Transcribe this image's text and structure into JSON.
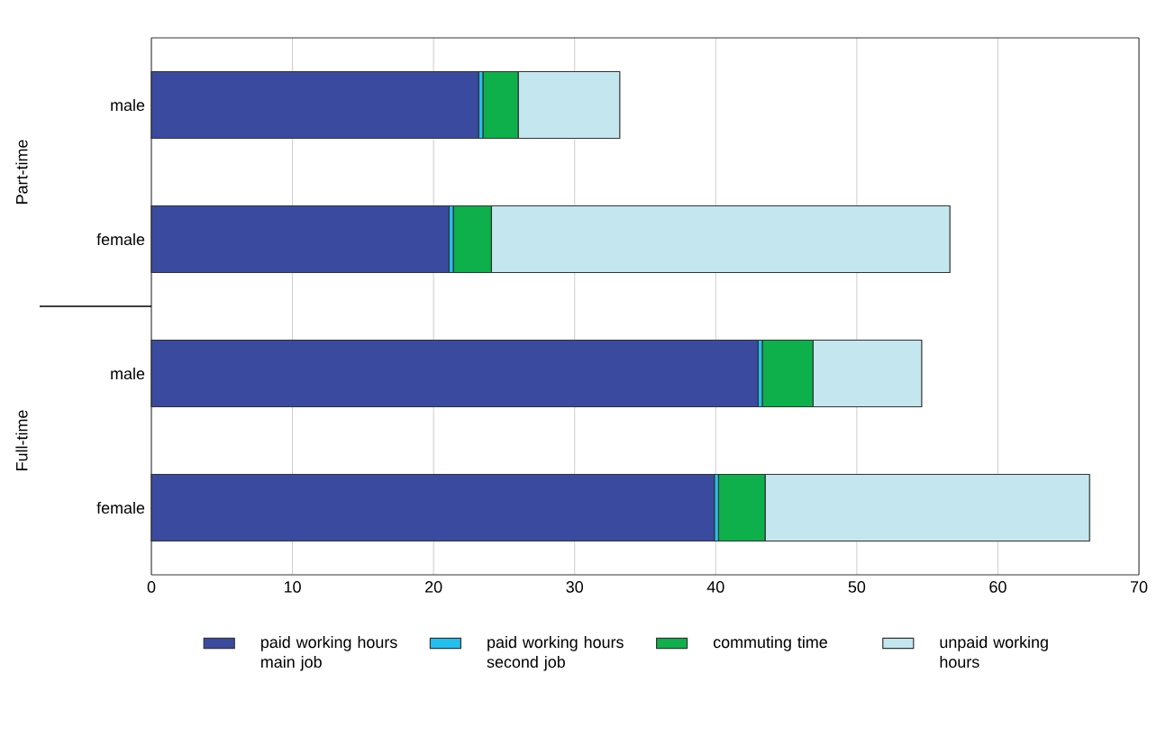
{
  "chart_data": {
    "type": "bar",
    "orientation": "horizontal",
    "stacked": true,
    "categories": [
      "male",
      "female",
      "male",
      "female"
    ],
    "series": [
      {
        "name": "paid working hours main job",
        "color": "#3a4a9e",
        "values": [
          23.2,
          21.1,
          43.0,
          39.9
        ]
      },
      {
        "name": "paid working hours second job",
        "color": "#22c0f0",
        "values": [
          0.3,
          0.3,
          0.3,
          0.3
        ]
      },
      {
        "name": "commuting time",
        "color": "#0db04b",
        "values": [
          2.5,
          2.7,
          3.6,
          3.3
        ]
      },
      {
        "name": "unpaid working hours",
        "color": "#c4e6ee",
        "values": [
          7.2,
          32.5,
          7.7,
          23.0
        ]
      }
    ],
    "annotations": [
      "Part-time",
      "Full-time"
    ],
    "xlim": [
      0,
      70
    ],
    "xticks": [
      0,
      10,
      20,
      30,
      40,
      50,
      60,
      70
    ],
    "grid": "x",
    "legend": "bottom"
  }
}
